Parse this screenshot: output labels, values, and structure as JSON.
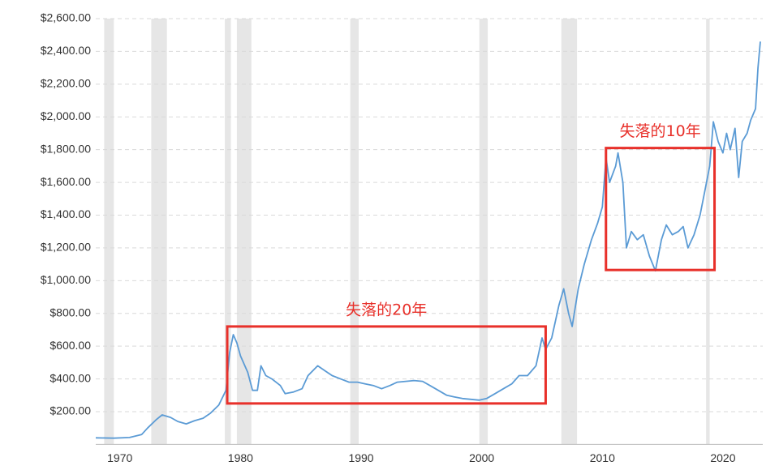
{
  "chart_data": {
    "type": "line",
    "color": "#5b9bd5",
    "xlim": [
      1968,
      2023.3
    ],
    "xticks": [
      1970,
      1980,
      1990,
      2000,
      2010,
      2020
    ],
    "ylim": [
      0,
      2600
    ],
    "yticks": [
      {
        "value": 200,
        "label": "$200.00"
      },
      {
        "value": 400,
        "label": "$400.00"
      },
      {
        "value": 600,
        "label": "$600.00"
      },
      {
        "value": 800,
        "label": "$800.00"
      },
      {
        "value": 1000,
        "label": "$1,000.00"
      },
      {
        "value": 1200,
        "label": "$1,200.00"
      },
      {
        "value": 1400,
        "label": "$1,400.00"
      },
      {
        "value": 1600,
        "label": "$1,600.00"
      },
      {
        "value": 1800,
        "label": "$1,800.00"
      },
      {
        "value": 2000,
        "label": "$2,000.00"
      },
      {
        "value": 2200,
        "label": "$2,200.00"
      },
      {
        "value": 2400,
        "label": "$2,400.00"
      },
      {
        "value": 2600,
        "label": "$2,600.00"
      }
    ],
    "grid": true,
    "shaded_ranges": [
      [
        1968.7,
        1969.5
      ],
      [
        1972.6,
        1973.9
      ],
      [
        1978.7,
        1979.2
      ],
      [
        1979.7,
        1980.9
      ],
      [
        1989.1,
        1989.8
      ],
      [
        1999.8,
        2000.5
      ],
      [
        2006.6,
        2007.9
      ],
      [
        2018.6,
        2018.9
      ]
    ],
    "x": [
      1968.0,
      1969.5,
      1970.8,
      1971.8,
      1972.3,
      1973.0,
      1973.5,
      1974.2,
      1974.8,
      1975.5,
      1976.2,
      1976.9,
      1977.5,
      1978.2,
      1978.8,
      1979.1,
      1979.4,
      1979.7,
      1980.0,
      1980.6,
      1981.0,
      1981.4,
      1981.7,
      1982.1,
      1982.6,
      1983.3,
      1983.7,
      1984.4,
      1985.1,
      1985.6,
      1986.4,
      1987.0,
      1987.6,
      1988.3,
      1989.0,
      1989.7,
      1990.3,
      1991.0,
      1991.7,
      1992.4,
      1993.0,
      1993.7,
      1994.4,
      1995.1,
      1995.7,
      1996.4,
      1997.1,
      1997.7,
      1998.4,
      1999.1,
      1999.8,
      2000.4,
      2001.1,
      2001.8,
      2002.5,
      2003.1,
      2003.8,
      2004.5,
      2005.0,
      2005.3,
      2005.8,
      2006.4,
      2006.8,
      2007.2,
      2007.5,
      2008.0,
      2008.5,
      2009.1,
      2009.6,
      2010.0,
      2010.3,
      2010.6,
      2011.1,
      2011.3,
      2011.7,
      2012.0,
      2012.4,
      2012.9,
      2013.4,
      2013.9,
      2014.4,
      2014.9,
      2015.3,
      2015.8,
      2016.3,
      2016.7,
      2017.1,
      2017.6,
      2018.1,
      2018.5,
      2018.9,
      2019.2,
      2019.6,
      2020.0,
      2020.3,
      2020.6,
      2021.0,
      2021.3,
      2021.6,
      2022.0,
      2022.3,
      2022.7,
      2022.9,
      2023.1
    ],
    "values": [
      40,
      38,
      42,
      60,
      100,
      150,
      180,
      165,
      140,
      125,
      145,
      160,
      190,
      240,
      330,
      560,
      670,
      620,
      540,
      440,
      330,
      330,
      480,
      420,
      400,
      360,
      310,
      320,
      340,
      420,
      480,
      450,
      420,
      400,
      380,
      380,
      370,
      360,
      340,
      360,
      380,
      385,
      390,
      385,
      360,
      330,
      300,
      290,
      280,
      275,
      270,
      280,
      310,
      340,
      370,
      420,
      420,
      480,
      650,
      580,
      650,
      850,
      950,
      800,
      720,
      950,
      1100,
      1250,
      1350,
      1450,
      1750,
      1600,
      1700,
      1780,
      1600,
      1200,
      1300,
      1250,
      1280,
      1150,
      1060,
      1250,
      1340,
      1280,
      1300,
      1330,
      1200,
      1280,
      1400,
      1550,
      1700,
      1970,
      1850,
      1780,
      1900,
      1800,
      1930,
      1630,
      1850,
      1900,
      1980,
      2050,
      2300,
      2460
    ],
    "annotations": [
      {
        "text": "失落的20年",
        "x_range": [
          1978.9,
          2005.3
        ],
        "y_range": [
          250,
          720
        ]
      },
      {
        "text": "失落的10年",
        "x_range": [
          2010.3,
          2019.3
        ],
        "y_range": [
          1065,
          1810
        ]
      }
    ]
  }
}
